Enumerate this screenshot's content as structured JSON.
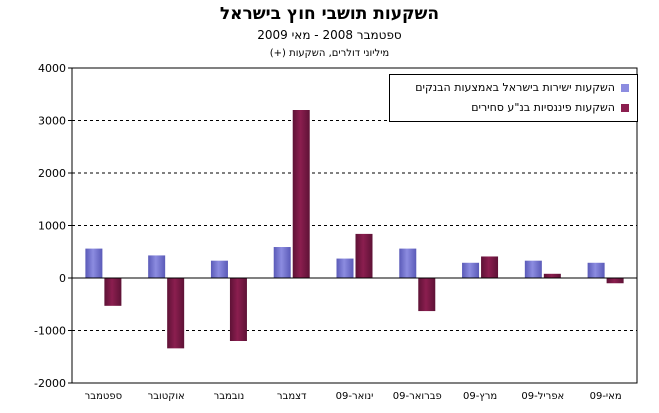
{
  "colors": {
    "direct": "#8c8ce0",
    "financial": "#8b1e4f",
    "direct_dark": "#5a5ab8",
    "financial_dark": "#5e1236"
  },
  "chart_data": {
    "type": "bar",
    "title": "השקעות תושבי חוץ בישראל",
    "subtitle": "ספטמבר 2008 - מאי 2009",
    "unit_label": "מיליוני דולרים, השקעות (+)",
    "categories": [
      "ספטמבר",
      "אוקטובר",
      "נובמבר",
      "דצמבר",
      "ינואר-09",
      "פברואר-09",
      "מרץ-09",
      "אפריל-09",
      "מאי-09"
    ],
    "series": [
      {
        "name": "השקעות ישירות בישראל באמצעות הבנקים",
        "values": [
          560,
          430,
          330,
          590,
          370,
          560,
          290,
          330,
          290
        ]
      },
      {
        "name": "השקעות פיננסיות בנ\"ע סחירים",
        "values": [
          -530,
          -1340,
          -1200,
          3200,
          840,
          -630,
          410,
          80,
          -100
        ]
      }
    ],
    "ylim": [
      -2000,
      4000
    ],
    "yticks": [
      -2000,
      -1000,
      0,
      1000,
      2000,
      3000,
      4000
    ],
    "grid": true,
    "legend_position": "top-right"
  }
}
